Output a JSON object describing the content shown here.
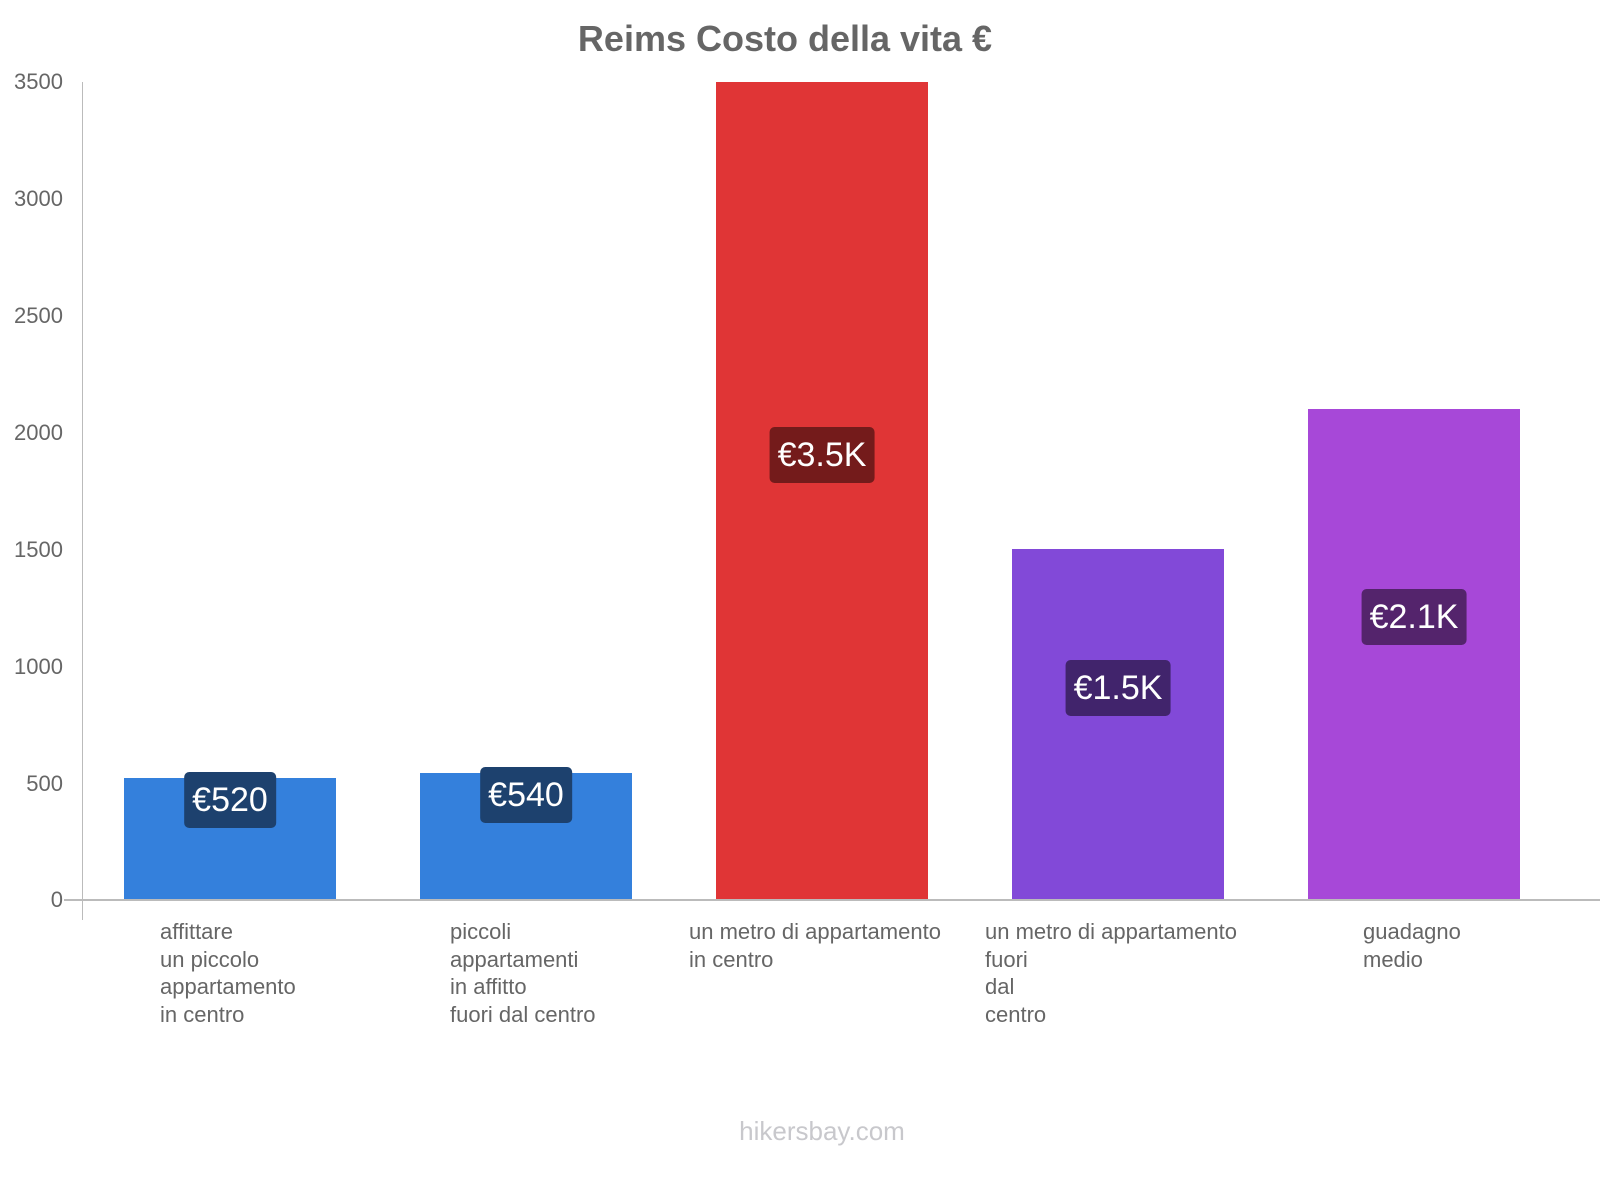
{
  "title": "Reims Costo della vita €",
  "watermark": "hikersbay.com",
  "y_ticks": [
    "3500",
    "3000",
    "2500",
    "2000",
    "1500",
    "1000",
    "500",
    "0"
  ],
  "bars": [
    {
      "label_lines": [
        "affittare",
        "un piccolo",
        "appartamento",
        "in centro"
      ],
      "value": 520,
      "value_label": "€520",
      "color": "#3480dc",
      "badge_color": "#1d416e"
    },
    {
      "label_lines": [
        "piccoli",
        "appartamenti",
        "in affitto",
        "fuori dal centro"
      ],
      "value": 540,
      "value_label": "€540",
      "color": "#3480dc",
      "badge_color": "#1d416e"
    },
    {
      "label_lines": [
        "un metro di appartamento",
        "in centro"
      ],
      "value": 3500,
      "value_label": "€3.5K",
      "color": "#e03536",
      "badge_color": "#741b1b"
    },
    {
      "label_lines": [
        "un metro di appartamento",
        "fuori",
        "dal",
        "centro"
      ],
      "value": 1500,
      "value_label": "€1.5K",
      "color": "#8249d8",
      "badge_color": "#41246c"
    },
    {
      "label_lines": [
        "guadagno",
        "medio"
      ],
      "value": 2100,
      "value_label": "€2.1K",
      "color": "#a748d8",
      "badge_color": "#54246c"
    }
  ],
  "chart_data": {
    "type": "bar",
    "title": "Reims Costo della vita €",
    "categories": [
      "affittare un piccolo appartamento in centro",
      "piccoli appartamenti in affitto fuori dal centro",
      "un metro di appartamento in centro",
      "un metro di appartamento fuori dal centro",
      "guadagno medio"
    ],
    "values": [
      520,
      540,
      3500,
      1500,
      2100
    ],
    "value_labels": [
      "€520",
      "€540",
      "€3.5K",
      "€1.5K",
      "€2.1K"
    ],
    "colors": [
      "#3480dc",
      "#3480dc",
      "#e03536",
      "#8249d8",
      "#a748d8"
    ],
    "xlabel": "",
    "ylabel": "",
    "ylim": [
      0,
      3500
    ],
    "yticks": [
      0,
      500,
      1000,
      1500,
      2000,
      2500,
      3000,
      3500
    ],
    "grid": false,
    "legend": "none"
  }
}
